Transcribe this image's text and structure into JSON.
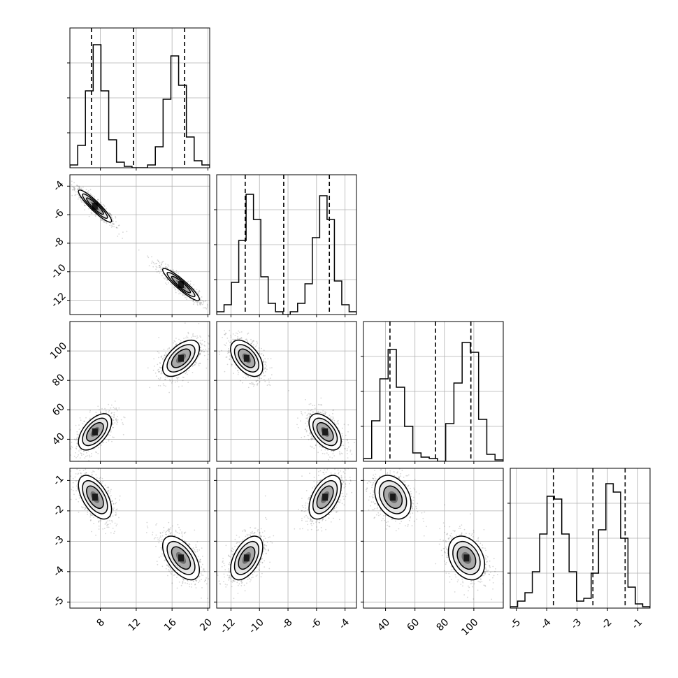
{
  "chart_data": {
    "type": "corner",
    "grid": true,
    "colors": {
      "line": "#000000",
      "grid": "#b0b0b0",
      "density": "#000000",
      "background": "#ffffff"
    },
    "params": [
      {
        "range": [
          4.6,
          20.2
        ],
        "ticks": [
          8,
          12,
          16,
          20
        ],
        "tick_labels": [
          "8",
          "12",
          "16",
          "20"
        ],
        "quantiles": [
          7.0,
          11.7,
          17.4
        ],
        "hist_bins": [
          0.02,
          0.16,
          0.55,
          0.88,
          0.55,
          0.2,
          0.04,
          0.01,
          0.0,
          0.0,
          0.02,
          0.15,
          0.49,
          0.8,
          0.59,
          0.22,
          0.05,
          0.02
        ],
        "modes": [
          {
            "center": 7.4,
            "sd": 0.9
          },
          {
            "center": 17.0,
            "sd": 1.0
          }
        ],
        "hist_ylim": [
          0,
          1.0
        ]
      },
      {
        "range": [
          -13.0,
          -3.2
        ],
        "ticks": [
          -12,
          -10,
          -8,
          -6,
          -4
        ],
        "tick_labels": [
          "-12",
          "-10",
          "-8",
          "-6",
          "-4"
        ],
        "quantiles": [
          -11.0,
          -8.3,
          -5.1
        ],
        "hist_bins": [
          0.02,
          0.07,
          0.23,
          0.53,
          0.86,
          0.68,
          0.27,
          0.08,
          0.02,
          0.0,
          0.02,
          0.08,
          0.22,
          0.55,
          0.85,
          0.68,
          0.24,
          0.07,
          0.02
        ],
        "modes": [
          {
            "center": -10.9,
            "sd": 0.55
          },
          {
            "center": -5.4,
            "sd": 0.55
          }
        ],
        "hist_ylim": [
          0,
          1.0
        ]
      },
      {
        "range": [
          25,
          120
        ],
        "ticks": [
          40,
          60,
          80,
          100
        ],
        "tick_labels": [
          "40",
          "60",
          "80",
          "100"
        ],
        "quantiles": [
          43,
          74,
          98
        ],
        "hist_bins": [
          0.02,
          0.29,
          0.59,
          0.8,
          0.53,
          0.25,
          0.06,
          0.03,
          0.02,
          0.0,
          0.27,
          0.56,
          0.85,
          0.78,
          0.3,
          0.05,
          0.01
        ],
        "modes": [
          {
            "center": 45,
            "sd": 6
          },
          {
            "center": 95,
            "sd": 6
          }
        ],
        "hist_ylim": [
          0,
          1.0
        ]
      },
      {
        "range": [
          -5.2,
          -0.6
        ],
        "ticks": [
          -5,
          -4,
          -3,
          -2,
          -1
        ],
        "tick_labels": [
          "-5",
          "-4",
          "-3",
          "-2",
          "-1"
        ],
        "quantiles": [
          -3.78,
          -2.48,
          -1.42
        ],
        "hist_bins": [
          0.01,
          0.05,
          0.11,
          0.26,
          0.53,
          0.8,
          0.78,
          0.53,
          0.26,
          0.05,
          0.07,
          0.25,
          0.56,
          0.89,
          0.83,
          0.5,
          0.15,
          0.03,
          0.01
        ],
        "modes": [
          {
            "center": -3.55,
            "sd": 0.35
          },
          {
            "center": -1.55,
            "sd": 0.35
          }
        ],
        "hist_ylim": [
          0,
          1.0
        ]
      }
    ],
    "mode_links": [
      {
        "params": [
          0,
          1
        ],
        "mode_pairs": [
          [
            0,
            1
          ],
          [
            1,
            0
          ]
        ]
      },
      {
        "params": [
          0,
          2
        ],
        "mode_pairs": [
          [
            0,
            0
          ],
          [
            1,
            1
          ]
        ]
      },
      {
        "params": [
          1,
          2
        ],
        "mode_pairs": [
          [
            1,
            0
          ],
          [
            0,
            1
          ]
        ]
      },
      {
        "params": [
          0,
          3
        ],
        "mode_pairs": [
          [
            0,
            1
          ],
          [
            1,
            0
          ]
        ]
      },
      {
        "params": [
          1,
          3
        ],
        "mode_pairs": [
          [
            1,
            1
          ],
          [
            0,
            0
          ]
        ]
      },
      {
        "params": [
          2,
          3
        ],
        "mode_pairs": [
          [
            0,
            1
          ],
          [
            1,
            0
          ]
        ]
      }
    ],
    "correlations": [
      {
        "params": [
          0,
          1
        ],
        "r": -0.92
      },
      {
        "params": [
          0,
          2
        ],
        "r": 0.55
      },
      {
        "params": [
          1,
          2
        ],
        "r": -0.5
      },
      {
        "params": [
          0,
          3
        ],
        "r": -0.55
      },
      {
        "params": [
          1,
          3
        ],
        "r": 0.5
      },
      {
        "params": [
          2,
          3
        ],
        "r": -0.3
      }
    ]
  }
}
